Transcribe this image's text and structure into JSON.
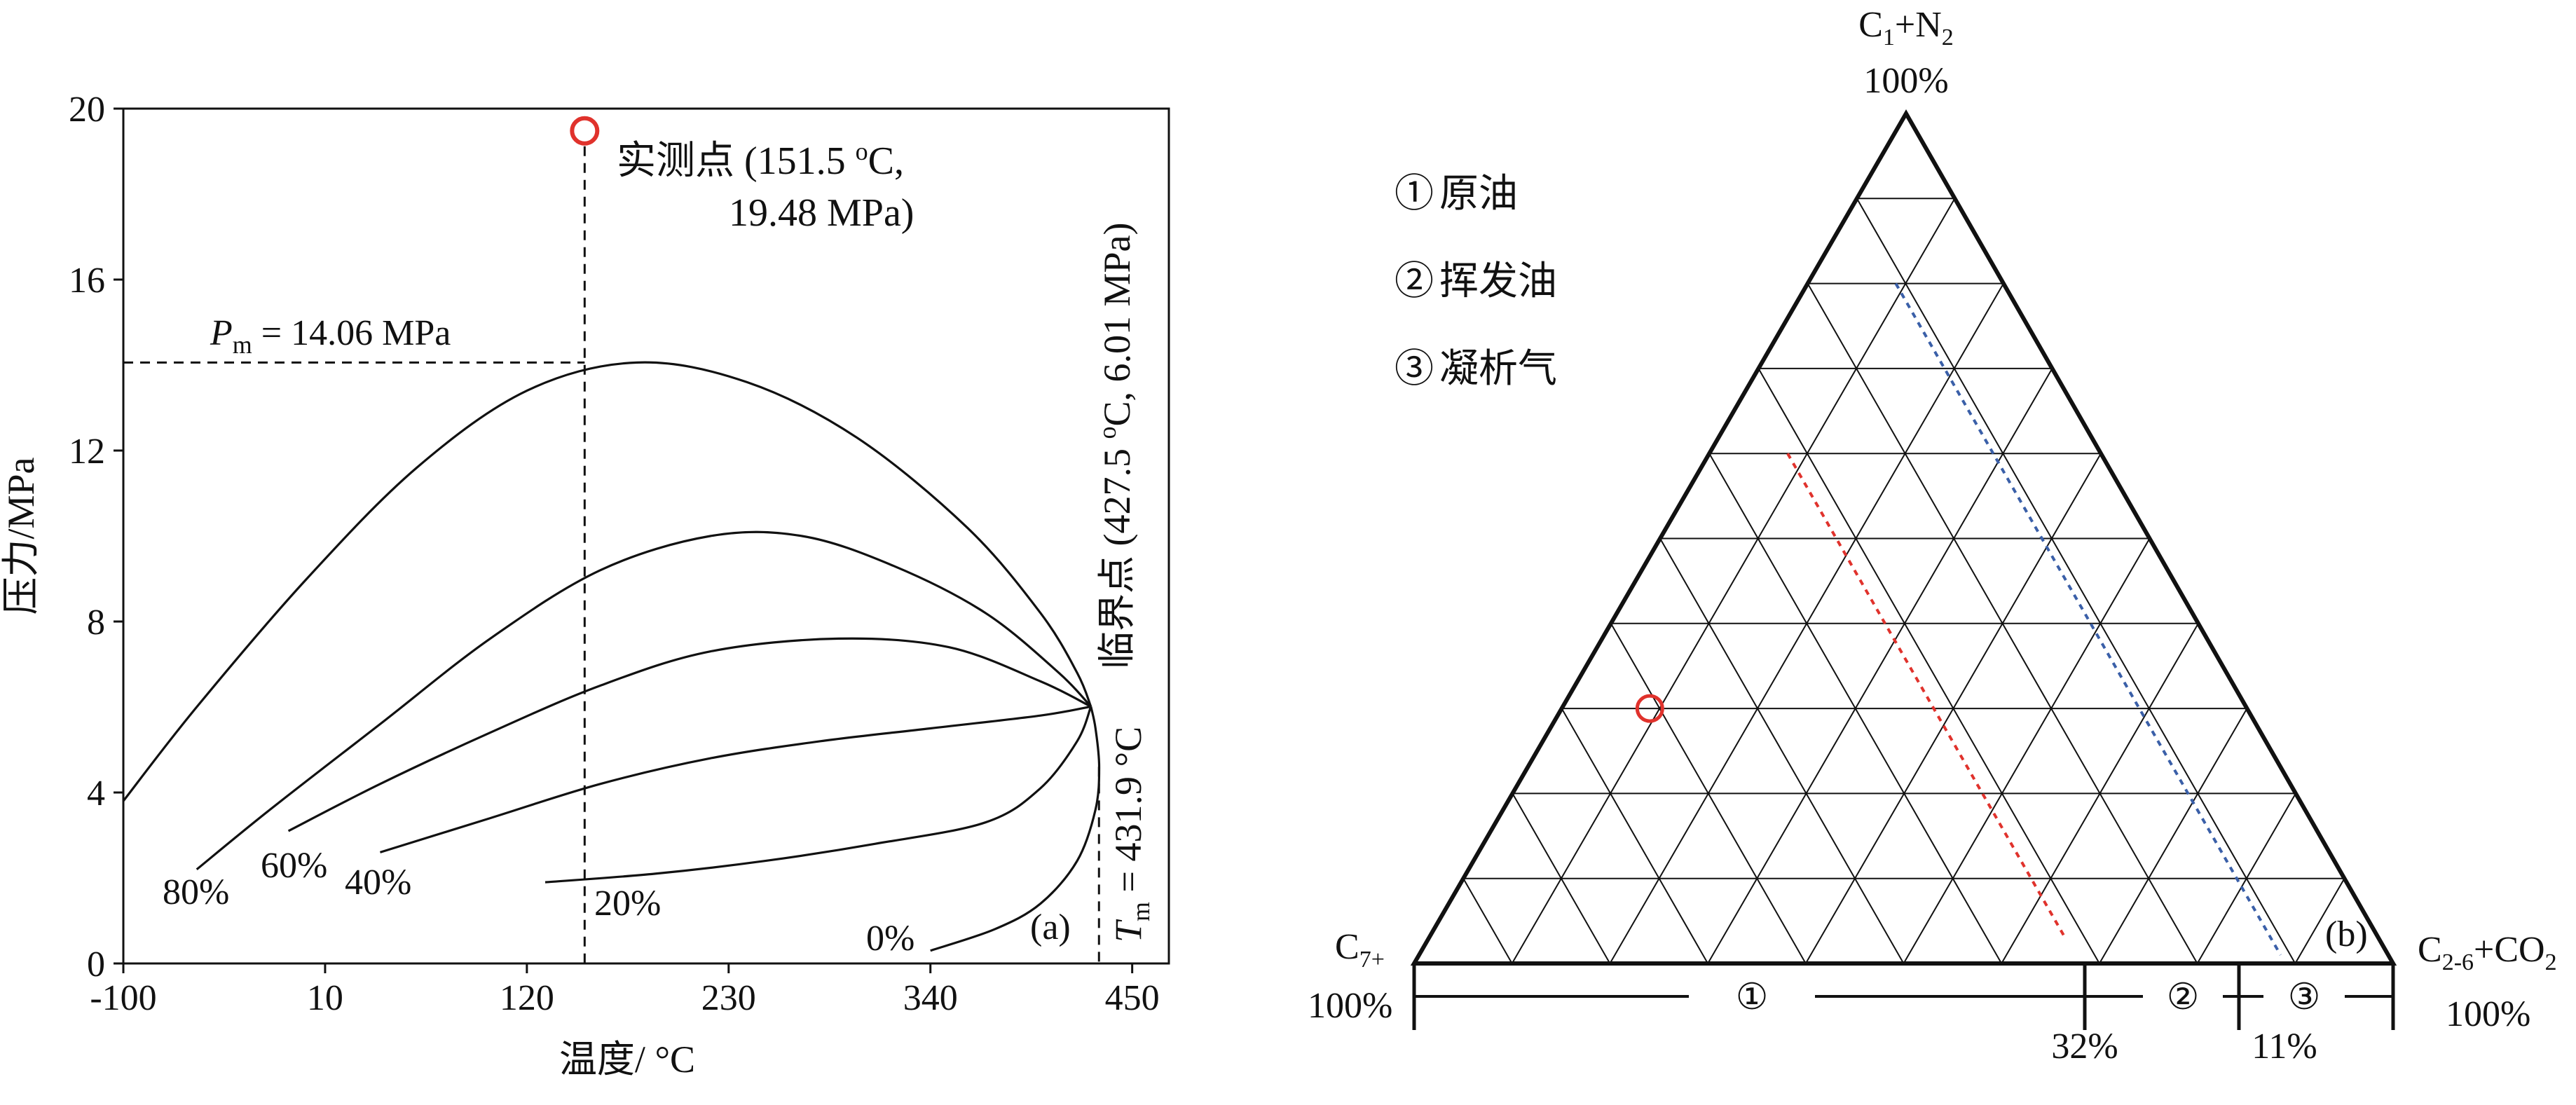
{
  "panel_a": {
    "panel_label": "(a)",
    "y_axis_label": "压力/MPa",
    "x_axis_label": "温度/ °C",
    "pm_label_prefix": "P",
    "pm_label_sub": "m",
    "pm_label_suffix": " = 14.06 MPa",
    "tm_label_prefix": "T",
    "tm_label_sub": "m",
    "tm_label_suffix": " = 431.9 °C",
    "measured_label_line1": "实测点 (151.5 ",
    "measured_label_sup": "o",
    "measured_label_line1_end": "C,",
    "measured_label_line2": "19.48 MPa)",
    "critical_label_main": "临界点 (427.5 ",
    "critical_label_sup": "o",
    "critical_label_end": "C, 6.01 MPa)"
  },
  "panel_b": {
    "panel_label": "(b)",
    "legend": [
      {
        "mark": "①",
        "text": "原油"
      },
      {
        "mark": "②",
        "text": "挥发油"
      },
      {
        "mark": "③",
        "text": "凝析气"
      }
    ],
    "top_vertex_main": "C",
    "top_vertex_sub1": "1",
    "top_vertex_mid": "+N",
    "top_vertex_sub2": "2",
    "top_vertex_pct": "100%",
    "left_vertex_main": "C",
    "left_vertex_sub": "7+",
    "left_vertex_pct": "100%",
    "right_vertex_main": "C",
    "right_vertex_sub": "2-6",
    "right_vertex_end": "+CO",
    "right_vertex_sub2": "2",
    "right_vertex_pct": "100%",
    "region_labels": [
      "①",
      "②",
      "③"
    ],
    "boundary_labels": [
      "32%",
      "11%"
    ]
  },
  "chart_data": [
    {
      "type": "line",
      "panel": "a",
      "xlabel": "温度/ °C",
      "ylabel": "压力/MPa",
      "xlim": [
        -100,
        470
      ],
      "ylim": [
        0,
        20
      ],
      "xticks": [
        -100,
        10,
        120,
        230,
        340,
        450
      ],
      "yticks": [
        0,
        4,
        8,
        12,
        16,
        20
      ],
      "grid": false,
      "series": [
        {
          "name": "0%",
          "points": [
            [
              340,
              0.3
            ],
            [
              375,
              0.8
            ],
            [
              400,
              1.4
            ],
            [
              420,
              2.4
            ],
            [
              430,
              3.6
            ],
            [
              432,
              4.6
            ],
            [
              430,
              5.5
            ],
            [
              427.5,
              6.01
            ]
          ]
        },
        {
          "name": "20%",
          "points": [
            [
              130,
              1.9
            ],
            [
              190,
              2.1
            ],
            [
              250,
              2.4
            ],
            [
              310,
              2.8
            ],
            [
              370,
              3.3
            ],
            [
              400,
              4.1
            ],
            [
              420,
              5.2
            ],
            [
              427.5,
              6.01
            ]
          ]
        },
        {
          "name": "40%",
          "points": [
            [
              40,
              2.6
            ],
            [
              100,
              3.4
            ],
            [
              160,
              4.2
            ],
            [
              220,
              4.8
            ],
            [
              280,
              5.2
            ],
            [
              340,
              5.5
            ],
            [
              400,
              5.8
            ],
            [
              427.5,
              6.01
            ]
          ]
        },
        {
          "name": "60%",
          "points": [
            [
              -10,
              3.1
            ],
            [
              40,
              4.2
            ],
            [
              100,
              5.4
            ],
            [
              160,
              6.5
            ],
            [
              220,
              7.3
            ],
            [
              290,
              7.6
            ],
            [
              350,
              7.4
            ],
            [
              400,
              6.6
            ],
            [
              427.5,
              6.01
            ]
          ]
        },
        {
          "name": "80%",
          "points": [
            [
              -60,
              2.2
            ],
            [
              -20,
              3.6
            ],
            [
              40,
              5.6
            ],
            [
              100,
              7.6
            ],
            [
              160,
              9.2
            ],
            [
              220,
              10.0
            ],
            [
              270,
              10.0
            ],
            [
              320,
              9.3
            ],
            [
              370,
              8.2
            ],
            [
              410,
              6.8
            ],
            [
              427.5,
              6.01
            ]
          ]
        },
        {
          "name": "",
          "points": [
            [
              -100,
              3.8
            ],
            [
              -60,
              6.0
            ],
            [
              0,
              9.0
            ],
            [
              60,
              11.6
            ],
            [
              120,
              13.4
            ],
            [
              180,
              14.06
            ],
            [
              240,
              13.6
            ],
            [
              300,
              12.3
            ],
            [
              360,
              10.2
            ],
            [
              400,
              8.2
            ],
            [
              420,
              6.8
            ],
            [
              427.5,
              6.01
            ]
          ]
        }
      ],
      "markers": {
        "measured_point": [
          151.5,
          19.48
        ],
        "critical_point": [
          427.5,
          6.01
        ],
        "pm": 14.06,
        "tm": 431.9
      },
      "curve_labels": [
        "80%",
        "60%",
        "40%",
        "20%",
        "0%"
      ]
    },
    {
      "type": "ternary",
      "panel": "b",
      "vertices": [
        "C1+N2",
        "C7+",
        "C2-6+CO2"
      ],
      "grid_divisions": 10,
      "sample_point": {
        "C1+N2": 30,
        "C7+": 61,
        "C2-6+CO2": 9
      },
      "boundaries_pct": [
        32,
        11
      ],
      "boundary_colors": [
        "#e0322c",
        "#3a5fa8"
      ],
      "marker_color": "#e0322c"
    }
  ]
}
